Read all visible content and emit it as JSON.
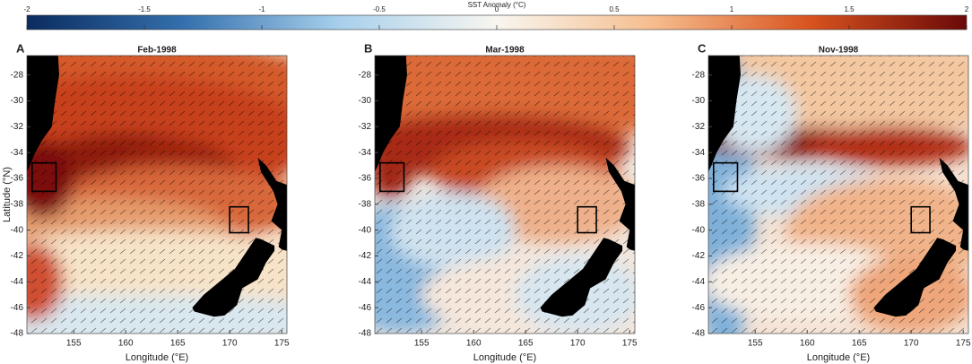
{
  "colorbar": {
    "label": "SST Anomaly (°C)",
    "lim": [
      -2,
      2
    ],
    "ticks": [
      -2,
      -1.5,
      -1,
      -0.5,
      0,
      0.5,
      1,
      1.5,
      2
    ],
    "colors": [
      "#0b2c5f",
      "#3470ad",
      "#a8d0ec",
      "#f8f6f0",
      "#f6bd8e",
      "#d8531e",
      "#6a0909"
    ]
  },
  "axes": {
    "xlabel": "Longitude (°E)",
    "ylabel": "Latitude (°N)",
    "xlim": [
      150.5,
      175.5
    ],
    "ylim": [
      -48,
      -26.5
    ],
    "xticks": [
      155,
      160,
      165,
      170,
      175
    ],
    "yticks": [
      -28,
      -30,
      -32,
      -34,
      -36,
      -38,
      -40,
      -42,
      -44,
      -46,
      -48
    ]
  },
  "panels": [
    {
      "letter": "A",
      "title": "Feb-1998"
    },
    {
      "letter": "B",
      "title": "Mar-1998"
    },
    {
      "letter": "C",
      "title": "Nov-1998"
    }
  ]
}
